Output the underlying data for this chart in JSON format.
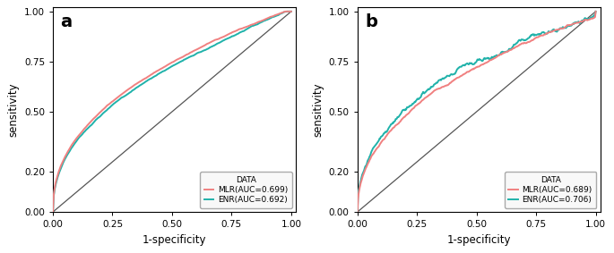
{
  "panel_a": {
    "label": "a",
    "mlr_auc": 0.699,
    "enr_auc": 0.692,
    "mlr_label": "MLR(AUC=0.699)",
    "enr_label": "ENR(AUC=0.692)",
    "mlr_color": "#F08080",
    "enr_color": "#20B2AA",
    "data_label": "DATA"
  },
  "panel_b": {
    "label": "b",
    "mlr_auc": 0.689,
    "enr_auc": 0.706,
    "mlr_label": "MLR(AUC=0.689)",
    "enr_label": "ENR(AUC=0.706)",
    "mlr_color": "#F08080",
    "enr_color": "#20B2AA",
    "data_label": "DATA"
  },
  "xlabel": "1-specificity",
  "ylabel": "sensitivity",
  "xticks": [
    0.0,
    0.25,
    0.5,
    0.75,
    1.0
  ],
  "yticks": [
    0.0,
    0.2,
    0.5,
    0.75,
    1.0
  ],
  "xlim": [
    0.0,
    1.02
  ],
  "ylim": [
    0.0,
    1.02
  ],
  "background_color": "#ffffff",
  "diagonal_color": "#555555",
  "linewidth": 1.4
}
